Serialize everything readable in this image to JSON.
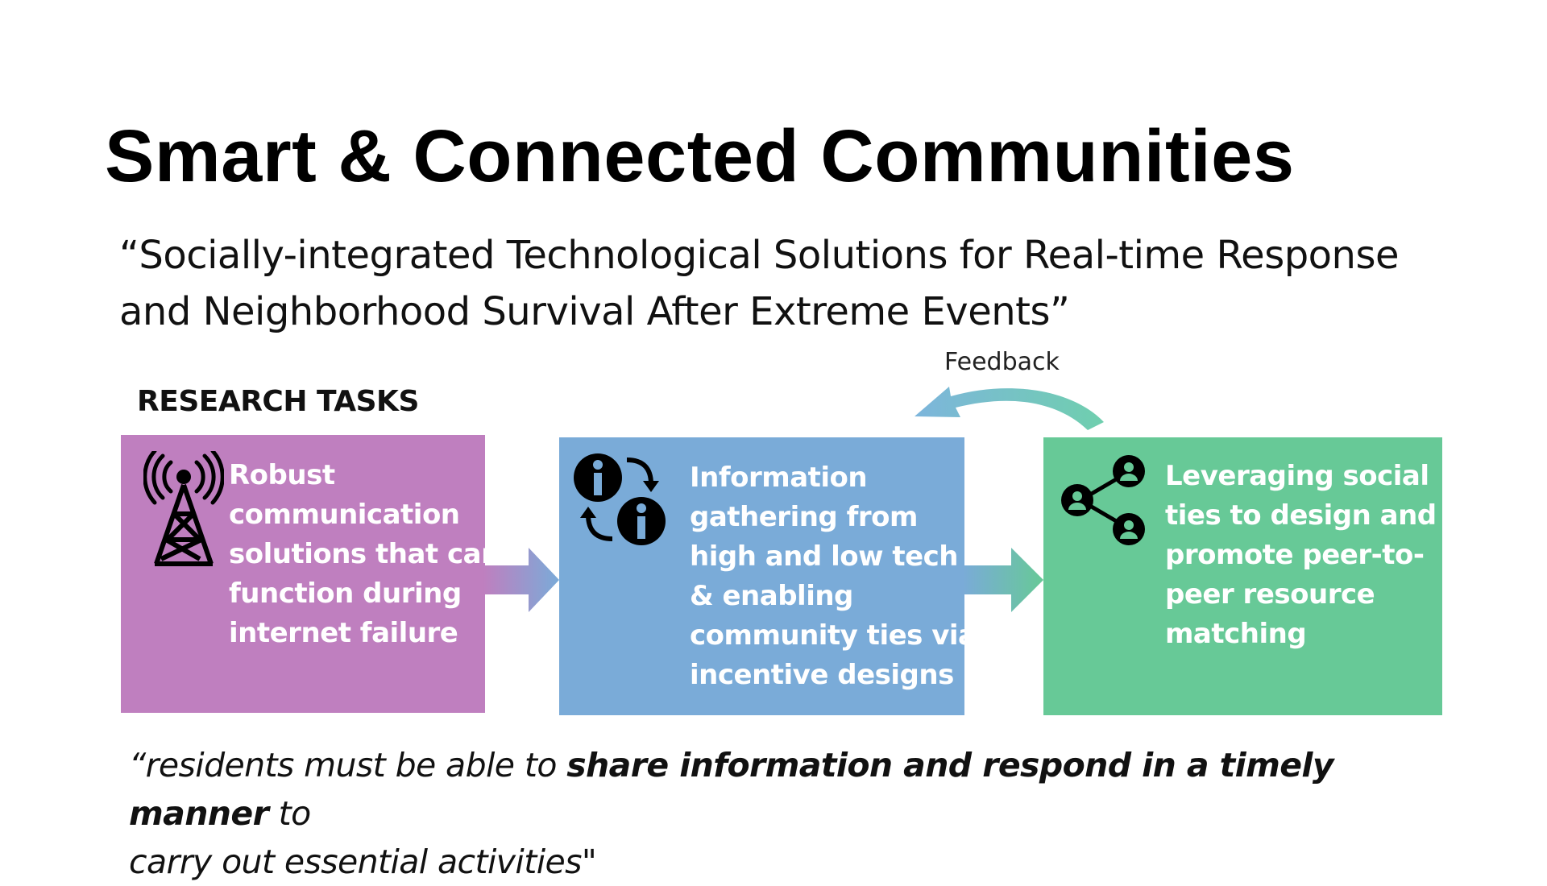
{
  "title": "Smart & Connected Communities",
  "subtitle": {
    "line1": "“Socially-integrated Technological Solutions for Real-time Response",
    "line2": "and Neighborhood Survival After Extreme Events”"
  },
  "research_tasks_label": "RESEARCH TASKS",
  "feedback_label": "Feedback",
  "boxes": [
    {
      "icon": "radio-tower-icon",
      "color": "#bf7fbf",
      "lines": [
        "Robust",
        "communication",
        "solutions that can",
        "function during",
        "internet failure"
      ]
    },
    {
      "icon": "information-exchange-icon",
      "color": "#7aabd8",
      "lines": [
        "Information",
        "gathering from",
        "high and low tech",
        "& enabling",
        "community ties via",
        "incentive designs"
      ]
    },
    {
      "icon": "social-network-icon",
      "color": "#67c997",
      "lines": [
        "Leveraging social",
        "ties to design and",
        "promote peer-to-",
        "peer resource",
        "matching"
      ]
    }
  ],
  "quote": {
    "part1": "“residents must be able to ",
    "emphasis": "share information and respond in a timely manner",
    "part2": " to",
    "line2": "carry out essential activities\""
  }
}
